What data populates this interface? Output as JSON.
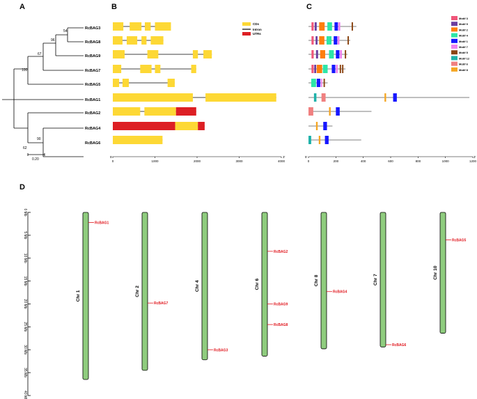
{
  "panels": {
    "A": "A",
    "B": "B",
    "C": "C",
    "D": "D"
  },
  "colors": {
    "cds": "#fdd835",
    "utr": "#dd1f24",
    "intron": "#000000",
    "chromosome_fill": "#8fcc7e",
    "chromosome_stroke": "#000000",
    "gene_label": "#e0141b",
    "motif": {
      "Motif 3": "#f0567a",
      "Motif 9": "#6b3fa0",
      "Motif 2": "#ff7f0e",
      "Motif 4": "#2ee6a8",
      "Motif 1": "#1717ff",
      "Motif 7": "#ee82ee",
      "Motif 5": "#8b4513",
      "Motif 12": "#20b2aa",
      "Motif 6": "#f08080",
      "Motif 8": "#f5a623"
    }
  },
  "tree": {
    "genes": [
      "RcBAG3",
      "RcBAG8",
      "RcBAG9",
      "RcBAG7",
      "RcBAG5",
      "RcBAG1",
      "RcBAG2",
      "RcBAG4",
      "RcBAG6"
    ],
    "bootstrap": [
      "54",
      "96",
      "67",
      "100",
      "62",
      "90"
    ],
    "scale_label": "0.20"
  },
  "gene_structure": {
    "legend": [
      "CDs",
      "Intron",
      "UTRs"
    ],
    "axis_ticks": [
      "0",
      "1000",
      "2000",
      "3000",
      "4000"
    ],
    "axis_start": "5'",
    "axis_end": "3'",
    "xmax": 4000,
    "genes": [
      {
        "name": "RcBAG3",
        "length": 1380,
        "features": [
          [
            "cds",
            0,
            250
          ],
          [
            "cds",
            400,
            680
          ],
          [
            "cds",
            760,
            900
          ],
          [
            "cds",
            1000,
            1380
          ]
        ]
      },
      {
        "name": "RcBAG8",
        "length": 1200,
        "features": [
          [
            "cds",
            0,
            230
          ],
          [
            "cds",
            330,
            580
          ],
          [
            "cds",
            680,
            800
          ],
          [
            "cds",
            900,
            1200
          ]
        ]
      },
      {
        "name": "RcBAG9",
        "length": 2350,
        "features": [
          [
            "cds",
            0,
            280
          ],
          [
            "cds",
            820,
            1080
          ],
          [
            "cds",
            1900,
            2020
          ],
          [
            "cds",
            2150,
            2350
          ]
        ]
      },
      {
        "name": "RcBAG7",
        "length": 1980,
        "features": [
          [
            "cds",
            0,
            200
          ],
          [
            "cds",
            650,
            920
          ],
          [
            "cds",
            1000,
            1130
          ],
          [
            "cds",
            1860,
            1980
          ]
        ]
      },
      {
        "name": "RcBAG5",
        "length": 1470,
        "features": [
          [
            "cds",
            0,
            150
          ],
          [
            "cds",
            230,
            380
          ],
          [
            "cds",
            1300,
            1470
          ]
        ]
      },
      {
        "name": "RcBAG1",
        "length": 3880,
        "features": [
          [
            "cds",
            0,
            1900
          ],
          [
            "cds",
            2200,
            3880
          ]
        ]
      },
      {
        "name": "RcBAG2",
        "length": 1980,
        "features": [
          [
            "cds",
            0,
            650
          ],
          [
            "cds",
            750,
            1500
          ],
          [
            "utr",
            1500,
            1980
          ]
        ]
      },
      {
        "name": "RcBAG4",
        "length": 2180,
        "features": [
          [
            "utr",
            0,
            1480
          ],
          [
            "cds",
            1480,
            2020
          ],
          [
            "utr",
            2020,
            2180
          ]
        ]
      },
      {
        "name": "RcBAG6",
        "length": 1180,
        "features": [
          [
            "cds",
            0,
            1180
          ]
        ]
      }
    ]
  },
  "motifs": {
    "legend": [
      "Motif 3",
      "Motif 9",
      "Motif 2",
      "Motif 4",
      "Motif 1",
      "Motif 7",
      "Motif 5",
      "Motif 12",
      "Motif 6",
      "Motif 8"
    ],
    "axis_ticks": [
      "0",
      "200",
      "400",
      "600",
      "800",
      "1000",
      "1200"
    ],
    "axis_start": "5'",
    "axis_end": "3'",
    "xmax": 1200,
    "proteins": [
      {
        "name": "RcBAG3",
        "length": 350,
        "motifs": [
          [
            "Motif 3",
            22,
            38
          ],
          [
            "Motif 9",
            45,
            60
          ],
          [
            "Motif 2",
            78,
            118
          ],
          [
            "Motif 4",
            138,
            172
          ],
          [
            "Motif 1",
            190,
            215
          ],
          [
            "Motif 7",
            218,
            232
          ],
          [
            "Motif 5",
            315,
            325
          ]
        ]
      },
      {
        "name": "RcBAG8",
        "length": 305,
        "motifs": [
          [
            "Motif 3",
            22,
            38
          ],
          [
            "Motif 9",
            52,
            66
          ],
          [
            "Motif 2",
            78,
            116
          ],
          [
            "Motif 4",
            132,
            168
          ],
          [
            "Motif 1",
            184,
            210
          ],
          [
            "Motif 7",
            212,
            226
          ],
          [
            "Motif 5",
            285,
            295
          ]
        ]
      },
      {
        "name": "RcBAG9",
        "length": 285,
        "motifs": [
          [
            "Motif 3",
            22,
            38
          ],
          [
            "Motif 9",
            55,
            70
          ],
          [
            "Motif 2",
            85,
            122
          ],
          [
            "Motif 4",
            150,
            185
          ],
          [
            "Motif 1",
            200,
            226
          ],
          [
            "Motif 7",
            230,
            244
          ],
          [
            "Motif 5",
            265,
            275
          ]
        ]
      },
      {
        "name": "RcBAG7",
        "length": 270,
        "motifs": [
          [
            "Motif 3",
            22,
            38
          ],
          [
            "Motif 9",
            42,
            56
          ],
          [
            "Motif 2",
            60,
            100
          ],
          [
            "Motif 4",
            105,
            140
          ],
          [
            "Motif 1",
            170,
            196
          ],
          [
            "Motif 7",
            200,
            214
          ],
          [
            "Motif 5",
            228,
            238
          ],
          [
            "Motif 5",
            245,
            255
          ]
        ]
      },
      {
        "name": "RcBAG5",
        "length": 140,
        "motifs": [
          [
            "Motif 4",
            20,
            55
          ],
          [
            "Motif 1",
            60,
            86
          ],
          [
            "Motif 7",
            90,
            100
          ],
          [
            "Motif 5",
            110,
            120
          ]
        ]
      },
      {
        "name": "RcBAG1",
        "length": 1175,
        "motifs": [
          [
            "Motif 12",
            40,
            58
          ],
          [
            "Motif 6",
            95,
            125
          ],
          [
            "Motif 8",
            555,
            567
          ],
          [
            "Motif 1",
            618,
            645
          ]
        ]
      },
      {
        "name": "RcBAG2",
        "length": 460,
        "motifs": [
          [
            "Motif 6",
            0,
            35
          ],
          [
            "Motif 8",
            150,
            162
          ],
          [
            "Motif 1",
            200,
            228
          ]
        ]
      },
      {
        "name": "RcBAG4",
        "length": 175,
        "motifs": [
          [
            "Motif 8",
            55,
            67
          ],
          [
            "Motif 1",
            108,
            135
          ]
        ]
      },
      {
        "name": "RcBAG6",
        "length": 385,
        "motifs": [
          [
            "Motif 12",
            0,
            20
          ],
          [
            "Motif 8",
            75,
            87
          ],
          [
            "Motif 1",
            120,
            147
          ]
        ]
      }
    ]
  },
  "chromosome_map": {
    "scale_ticks": [
      "0 Mb",
      "5 Mb",
      "10 Mb",
      "15 Mb",
      "20 Mb",
      "25 Mb",
      "30 Mb",
      "35 Mb",
      "40 Mb"
    ],
    "max_mb": 40,
    "chromosomes": [
      {
        "name": "Chr 1",
        "length_mb": 36.5,
        "genes": [
          {
            "name": "RcBAG1",
            "pos_mb": 2.2
          }
        ]
      },
      {
        "name": "Chr 2",
        "length_mb": 34.5,
        "genes": [
          {
            "name": "RcBAG7",
            "pos_mb": 19.8
          }
        ]
      },
      {
        "name": "Chr 4",
        "length_mb": 32.2,
        "genes": [
          {
            "name": "RcBAG3",
            "pos_mb": 30.0
          }
        ]
      },
      {
        "name": "Chr 6",
        "length_mb": 31.4,
        "genes": [
          {
            "name": "RcBAG2",
            "pos_mb": 8.5
          },
          {
            "name": "RcBAG9",
            "pos_mb": 20.0
          },
          {
            "name": "RcBAG8",
            "pos_mb": 24.5
          }
        ]
      },
      {
        "name": "Chr 8",
        "length_mb": 29.8,
        "genes": [
          {
            "name": "RcBAG4",
            "pos_mb": 17.3
          }
        ]
      },
      {
        "name": "Chr 7",
        "length_mb": 29.4,
        "genes": [
          {
            "name": "RcBAG6",
            "pos_mb": 28.9
          }
        ]
      },
      {
        "name": "Chr 10",
        "length_mb": 26.4,
        "genes": [
          {
            "name": "RcBAG5",
            "pos_mb": 6.0
          }
        ]
      }
    ]
  }
}
